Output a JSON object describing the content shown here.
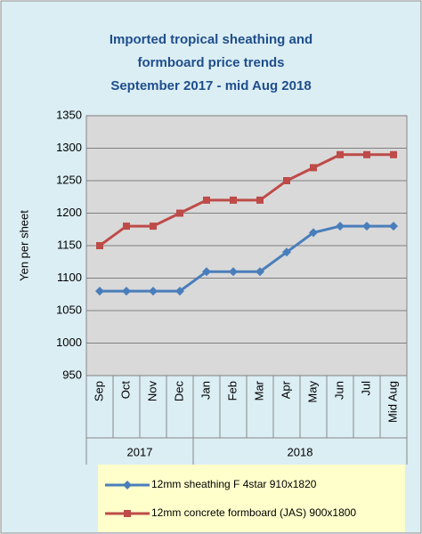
{
  "chart_data": {
    "type": "line",
    "title": [
      "Imported tropical sheathing and",
      "formboard price trends",
      "September 2017 - mid Aug 2018"
    ],
    "y_label": "Yen per sheet",
    "categories": [
      "Sep",
      "Oct",
      "Nov",
      "Dec",
      "Jan",
      "Feb",
      "Mar",
      "Apr",
      "May",
      "Jun",
      "Jul",
      "Mid Aug"
    ],
    "category_groups": [
      {
        "label": "2017",
        "count": 4
      },
      {
        "label": "2018",
        "count": 8
      }
    ],
    "series": [
      {
        "name": "12mm sheathing F 4star 910x1820",
        "color": "#4a7ebb",
        "marker": "diamond",
        "values": [
          1080,
          1080,
          1080,
          1080,
          1110,
          1110,
          1110,
          1140,
          1170,
          1180,
          1180,
          1180
        ]
      },
      {
        "name": "12mm concrete formboard (JAS) 900x1800",
        "color": "#be4b48",
        "marker": "square",
        "values": [
          1150,
          1180,
          1180,
          1200,
          1220,
          1220,
          1220,
          1250,
          1270,
          1290,
          1290,
          1290
        ]
      }
    ],
    "ylim": [
      950,
      1350
    ],
    "yticks": [
      950,
      1000,
      1050,
      1100,
      1150,
      1200,
      1250,
      1300,
      1350
    ],
    "grid": true
  }
}
